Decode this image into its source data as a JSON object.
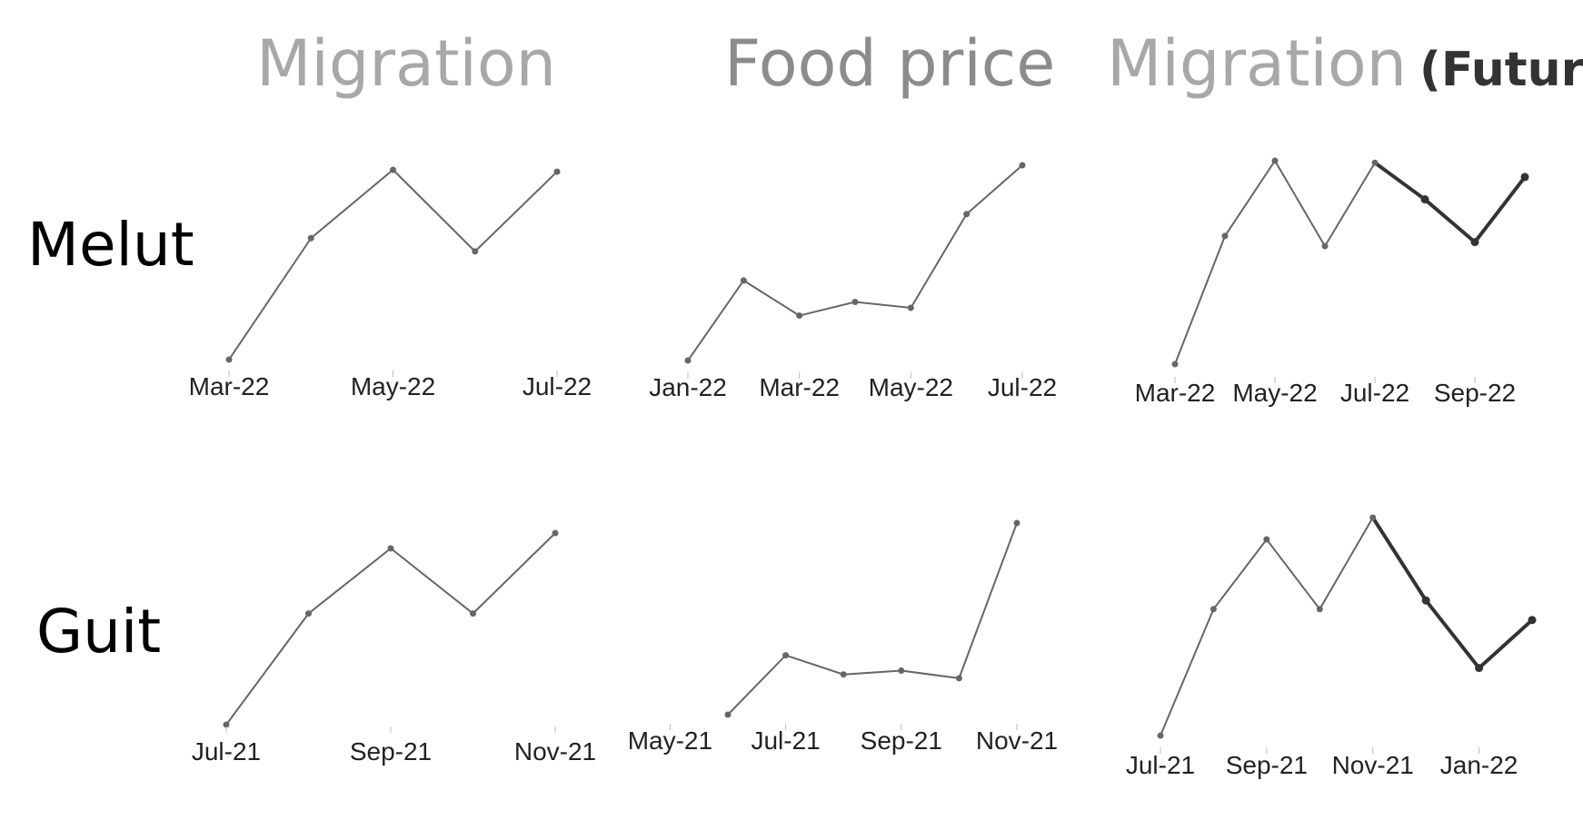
{
  "col_titles": [
    {
      "text": "Migration",
      "suffix": "",
      "color": "#a8a8a8"
    },
    {
      "text": "Food price",
      "suffix": "",
      "color": "#8c8c8c"
    },
    {
      "text": "Migration",
      "suffix": "(Future)",
      "color": "#a8a8a8",
      "suffix_color": "#333333"
    }
  ],
  "row_titles": [
    "Melut",
    "Guit"
  ],
  "colors": {
    "line": "#666666",
    "future": "#333333",
    "tick": "#bbbbbb"
  },
  "chart_data": [
    {
      "type": "line",
      "row": "Melut",
      "column": "Migration",
      "x": [
        "Mar-22",
        "Apr-22",
        "May-22",
        "Jun-22",
        "Jul-22"
      ],
      "values": [
        0.0,
        0.64,
        1.0,
        0.57,
        0.99
      ],
      "ticks": [
        "Mar-22",
        "May-22",
        "Jul-22"
      ]
    },
    {
      "type": "line",
      "row": "Melut",
      "column": "Food price",
      "x": [
        "Jan-22",
        "Feb-22",
        "Mar-22",
        "Apr-22",
        "May-22",
        "Jun-22",
        "Jul-22"
      ],
      "values": [
        0.0,
        0.41,
        0.23,
        0.3,
        0.27,
        0.75,
        1.0
      ],
      "ticks": [
        "Jan-22",
        "Mar-22",
        "May-22",
        "Jul-22"
      ]
    },
    {
      "type": "line",
      "row": "Melut",
      "column": "Migration (Future)",
      "x": [
        "Mar-22",
        "Apr-22",
        "May-22",
        "Jun-22",
        "Jul-22",
        "Aug-22",
        "Sep-22",
        "Oct-22"
      ],
      "values": [
        0.0,
        0.63,
        1.0,
        0.58,
        0.99,
        0.81,
        0.6,
        0.92
      ],
      "future_start": 5,
      "ticks": [
        "Mar-22",
        "May-22",
        "Jul-22",
        "Sep-22"
      ]
    },
    {
      "type": "line",
      "row": "Guit",
      "column": "Migration",
      "x": [
        "Jul-21",
        "Aug-21",
        "Sep-21",
        "Oct-21",
        "Nov-21"
      ],
      "values": [
        0.0,
        0.58,
        0.92,
        0.58,
        1.0
      ],
      "ticks": [
        "Jul-21",
        "Sep-21",
        "Nov-21"
      ]
    },
    {
      "type": "line",
      "row": "Guit",
      "column": "Food price",
      "x": [
        "Jun-21",
        "Jul-21",
        "Aug-21",
        "Sep-21",
        "Oct-21",
        "Nov-21"
      ],
      "values": [
        0.0,
        0.31,
        0.21,
        0.23,
        0.19,
        1.0
      ],
      "ticks": [
        "May-21",
        "Jul-21",
        "Sep-21",
        "Nov-21"
      ]
    },
    {
      "type": "line",
      "row": "Guit",
      "column": "Migration (Future)",
      "x": [
        "Jul-21",
        "Aug-21",
        "Sep-21",
        "Oct-21",
        "Nov-21",
        "Dec-21",
        "Jan-22",
        "Feb-22"
      ],
      "values": [
        0.0,
        0.58,
        0.9,
        0.58,
        1.0,
        0.62,
        0.31,
        0.53
      ],
      "future_start": 5,
      "ticks": [
        "Jul-21",
        "Sep-21",
        "Nov-21",
        "Jan-22"
      ]
    }
  ]
}
